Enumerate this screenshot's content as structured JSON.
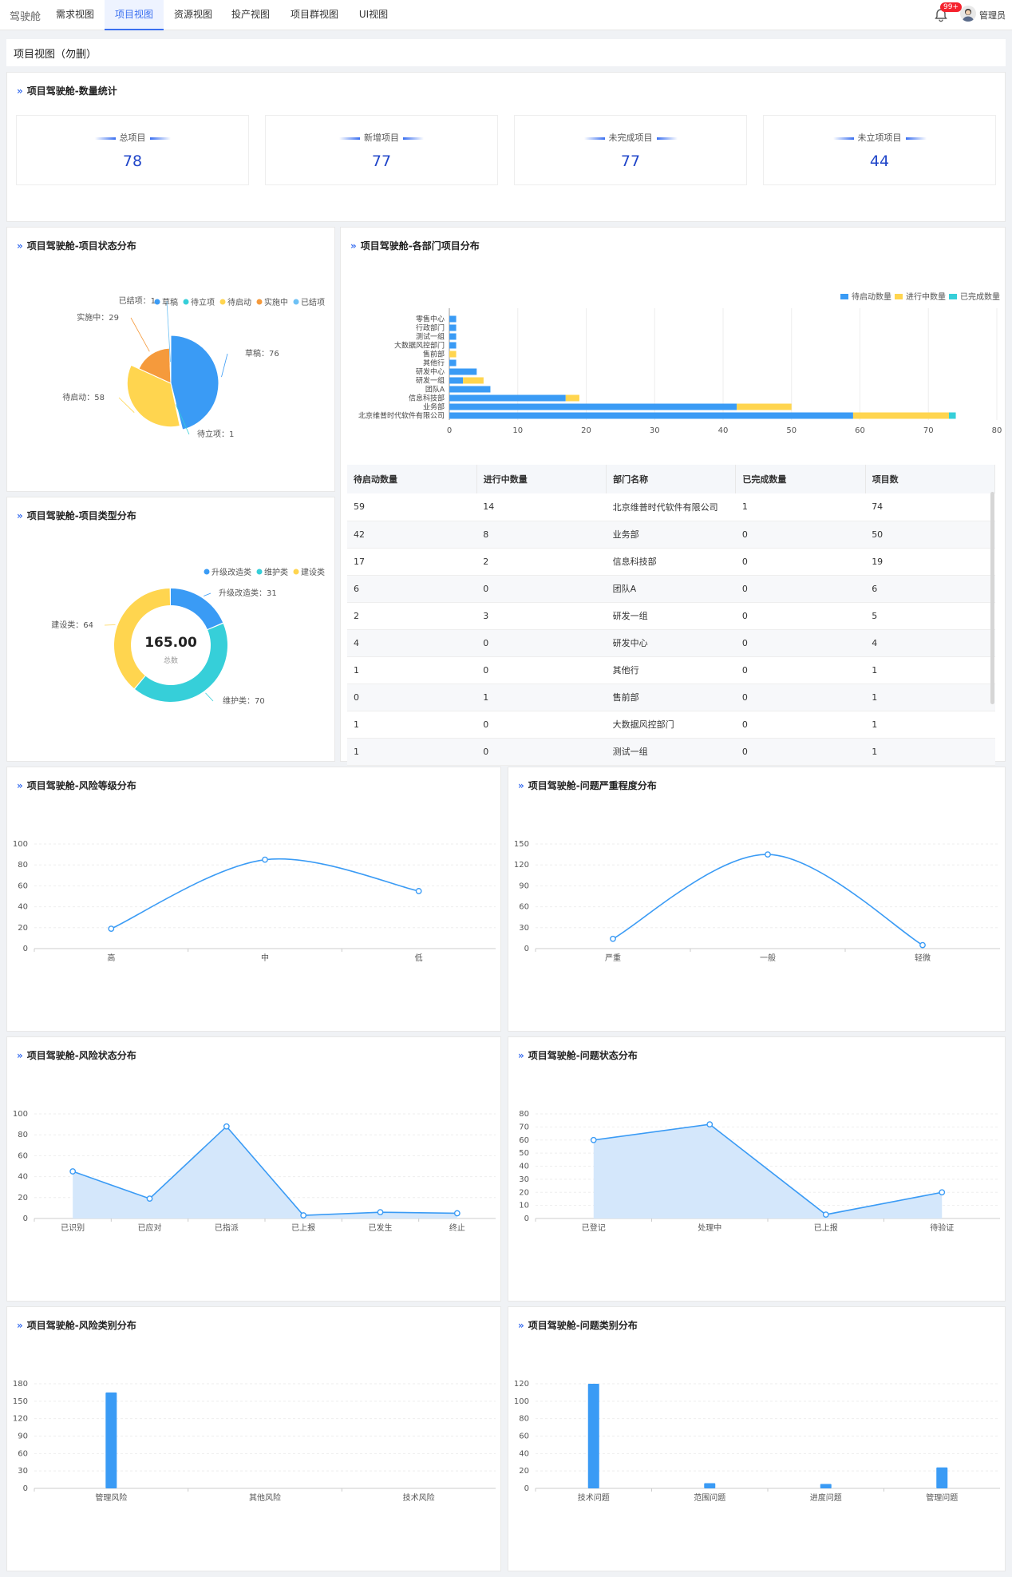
{
  "nav": {
    "brand": "驾驶舱",
    "tabs": [
      "需求视图",
      "项目视图",
      "资源视图",
      "投产视图",
      "项目群视图",
      "UI视图"
    ],
    "active": 1,
    "badge": "99+",
    "user": "管理员"
  },
  "breadcrumb": "项目视图（勿删）",
  "colors": {
    "accent": "#3a6ff0",
    "blue": "#3a9bf5",
    "yellow": "#ffd54f",
    "cyan": "#36cfd9",
    "orange": "#f59a3c",
    "lightblue": "#6ec1f5"
  },
  "stats": {
    "title": "项目驾驶舱-数量统计",
    "items": [
      {
        "label": "总项目",
        "value": "78"
      },
      {
        "label": "新增项目",
        "value": "77"
      },
      {
        "label": "未完成项目",
        "value": "77"
      },
      {
        "label": "未立项项目",
        "value": "44"
      }
    ]
  },
  "status": {
    "title": "项目驾驶舱-项目状态分布",
    "chart_data": {
      "type": "pie",
      "legend": [
        "草稿",
        "待立项",
        "待启动",
        "实施中",
        "已结项"
      ],
      "slices": [
        {
          "name": "草稿",
          "value": 76,
          "label": "草稿：76"
        },
        {
          "name": "待立项",
          "value": 1,
          "label": "待立项：1"
        },
        {
          "name": "待启动",
          "value": 58,
          "label": "待启动：58"
        },
        {
          "name": "实施中",
          "value": 29,
          "label": "实施中：29"
        },
        {
          "name": "已结项",
          "value": 1,
          "label": "已结项：1"
        }
      ]
    }
  },
  "types": {
    "title": "项目驾驶舱-项目类型分布",
    "total": "165.00",
    "total_label": "总数",
    "chart_data": {
      "type": "pie",
      "legend": [
        "升级改造类",
        "维护类",
        "建设类"
      ],
      "slices": [
        {
          "name": "升级改造类",
          "value": 31,
          "label": "升级改造类：31"
        },
        {
          "name": "维护类",
          "value": 70,
          "label": "维护类：70"
        },
        {
          "name": "建设类",
          "value": 64,
          "label": "建设类：64"
        }
      ]
    }
  },
  "dept": {
    "title": "项目驾驶舱-各部门项目分布",
    "chart_data": {
      "type": "bar",
      "orientation": "horizontal",
      "stacked": true,
      "legend_position": "top-right",
      "categories": [
        "零售中心",
        "行政部门",
        "测试一组",
        "大数据风控部门",
        "售前部",
        "其他行",
        "研发中心",
        "研发一组",
        "团队A",
        "信息科技部",
        "业务部",
        "北京维普时代软件有限公司"
      ],
      "series": [
        {
          "name": "待启动数量",
          "values": [
            1,
            1,
            1,
            1,
            0,
            1,
            4,
            2,
            6,
            17,
            42,
            59
          ]
        },
        {
          "name": "进行中数量",
          "values": [
            0,
            0,
            0,
            0,
            1,
            0,
            0,
            3,
            0,
            2,
            8,
            14
          ]
        },
        {
          "name": "已完成数量",
          "values": [
            0,
            0,
            0,
            0,
            0,
            0,
            0,
            0,
            0,
            0,
            0,
            1
          ]
        }
      ],
      "xticks": [
        "0",
        "10",
        "20",
        "30",
        "40",
        "50",
        "60",
        "70",
        "80"
      ],
      "xlim": [
        0,
        80
      ]
    }
  },
  "table": {
    "headers": [
      "待启动数量",
      "进行中数量",
      "部门名称",
      "已完成数量",
      "项目数"
    ],
    "rows": [
      [
        "59",
        "14",
        "北京维普时代软件有限公司",
        "1",
        "74"
      ],
      [
        "42",
        "8",
        "业务部",
        "0",
        "50"
      ],
      [
        "17",
        "2",
        "信息科技部",
        "0",
        "19"
      ],
      [
        "6",
        "0",
        "团队A",
        "0",
        "6"
      ],
      [
        "2",
        "3",
        "研发一组",
        "0",
        "5"
      ],
      [
        "4",
        "0",
        "研发中心",
        "0",
        "4"
      ],
      [
        "1",
        "0",
        "其他行",
        "0",
        "1"
      ],
      [
        "0",
        "1",
        "售前部",
        "0",
        "1"
      ],
      [
        "1",
        "0",
        "大数据风控部门",
        "0",
        "1"
      ],
      [
        "1",
        "0",
        "测试一组",
        "0",
        "1"
      ]
    ]
  },
  "risk_level": {
    "title": "项目驾驶舱-风险等级分布",
    "chart_data": {
      "type": "line",
      "smooth": true,
      "categories": [
        "高",
        "中",
        "低"
      ],
      "values": [
        19,
        85,
        55
      ],
      "yticks": [
        "0",
        "20",
        "40",
        "60",
        "80",
        "100"
      ],
      "ylim": [
        0,
        100
      ]
    }
  },
  "issue_severity": {
    "title": "项目驾驶舱-问题严重程度分布",
    "chart_data": {
      "type": "line",
      "smooth": true,
      "categories": [
        "严重",
        "一般",
        "轻微"
      ],
      "values": [
        14,
        135,
        5
      ],
      "yticks": [
        "0",
        "30",
        "60",
        "90",
        "120",
        "150"
      ],
      "ylim": [
        0,
        150
      ]
    }
  },
  "risk_status": {
    "title": "项目驾驶舱-风险状态分布",
    "chart_data": {
      "type": "area",
      "categories": [
        "已识别",
        "已应对",
        "已指派",
        "已上报",
        "已发生",
        "终止"
      ],
      "values": [
        45,
        19,
        88,
        3,
        6,
        5
      ],
      "yticks": [
        "0",
        "20",
        "40",
        "60",
        "80",
        "100"
      ],
      "ylim": [
        0,
        100
      ]
    }
  },
  "issue_status": {
    "title": "项目驾驶舱-问题状态分布",
    "chart_data": {
      "type": "area",
      "categories": [
        "已登记",
        "处理中",
        "已上报",
        "待验证"
      ],
      "values": [
        60,
        72,
        3,
        20
      ],
      "yticks": [
        "0",
        "10",
        "20",
        "30",
        "40",
        "50",
        "60",
        "70",
        "80"
      ],
      "ylim": [
        0,
        80
      ]
    }
  },
  "risk_type": {
    "title": "项目驾驶舱-风险类别分布",
    "chart_data": {
      "type": "bar",
      "categories": [
        "管理风险",
        "其他风险",
        "技术风险"
      ],
      "values": [
        165,
        0,
        0
      ],
      "yticks": [
        "0",
        "30",
        "60",
        "90",
        "120",
        "150",
        "180"
      ],
      "ylim": [
        0,
        180
      ]
    }
  },
  "issue_type": {
    "title": "项目驾驶舱-问题类别分布",
    "chart_data": {
      "type": "bar",
      "categories": [
        "技术问题",
        "范围问题",
        "进度问题",
        "管理问题"
      ],
      "values": [
        120,
        6,
        5,
        24
      ],
      "yticks": [
        "0",
        "20",
        "40",
        "60",
        "80",
        "100",
        "120"
      ],
      "ylim": [
        0,
        120
      ]
    }
  }
}
